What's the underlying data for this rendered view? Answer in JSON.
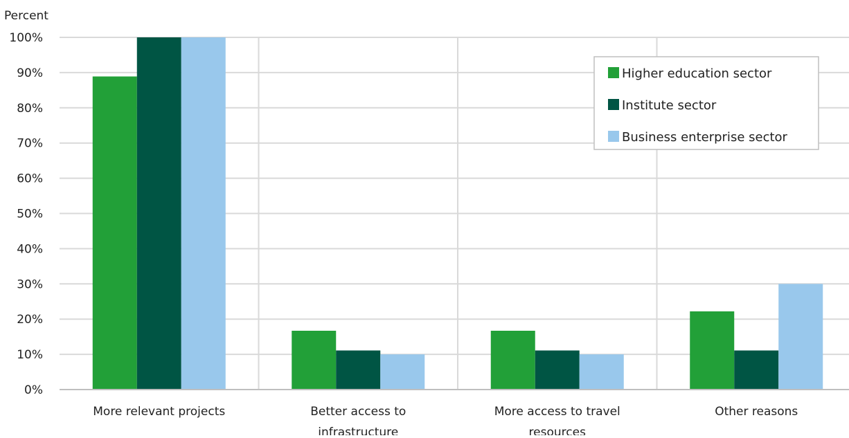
{
  "chart_data": {
    "type": "bar",
    "ylabel": "Percent",
    "xlabel": "",
    "ylim": [
      0,
      100
    ],
    "yticks": [
      0,
      10,
      20,
      30,
      40,
      50,
      60,
      70,
      80,
      90,
      100
    ],
    "ytick_labels": [
      "0%",
      "10%",
      "20%",
      "30%",
      "40%",
      "50%",
      "60%",
      "70%",
      "80%",
      "90%",
      "100%"
    ],
    "categories": [
      [
        "More relevant projects"
      ],
      [
        "Better access to",
        "infrastructure"
      ],
      [
        "More access to travel",
        "resources"
      ],
      [
        "Other reasons"
      ]
    ],
    "series": [
      {
        "name": "Higher education sector",
        "color": "#22a038",
        "values": [
          88.9,
          16.7,
          16.7,
          22.2
        ]
      },
      {
        "name": "Institute sector",
        "color": "#005544",
        "values": [
          100,
          11.1,
          11.1,
          11.1
        ]
      },
      {
        "name": "Business enterprise sector",
        "color": "#99c8ec",
        "values": [
          100,
          10,
          10,
          30
        ]
      }
    ],
    "grid": true,
    "legend_position": "top-right"
  }
}
